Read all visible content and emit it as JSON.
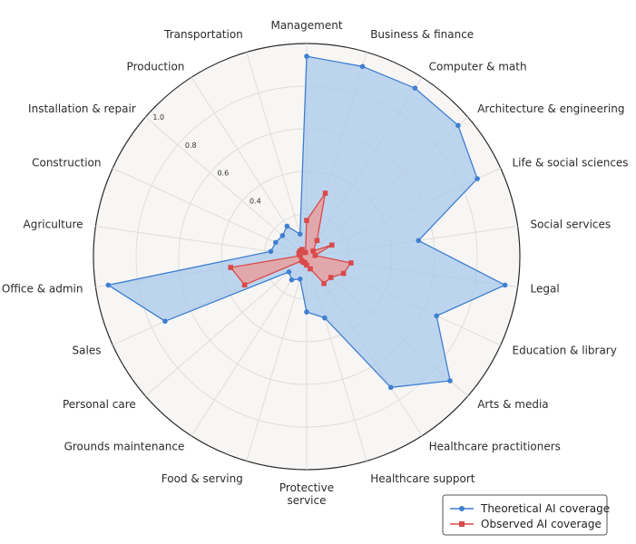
{
  "chart_data": {
    "type": "radar",
    "title": "",
    "categories": [
      "Management",
      "Business & finance",
      "Computer & math",
      "Architecture & engineering",
      "Life & social sciences",
      "Social services",
      "Legal",
      "Education & library",
      "Arts & media",
      "Healthcare practitioners",
      "Healthcare support",
      "Protective service",
      "Food & serving",
      "Grounds maintenance",
      "Personal care",
      "Sales",
      "Office & admin",
      "Agriculture",
      "Construction",
      "Installation & repair",
      "Production",
      "Transportation"
    ],
    "rlim": [
      0,
      1.0
    ],
    "tick_values": [
      0.4,
      0.6,
      0.8,
      1.0
    ],
    "tick_labels": [
      "0.4",
      "0.6",
      "0.8",
      "1.0"
    ],
    "series": [
      {
        "name": "Theoretical AI coverage",
        "color": "#3f7fd0",
        "fill": "#a9c8ec",
        "marker": "circle",
        "values": [
          0.94,
          0.93,
          0.94,
          0.94,
          0.88,
          0.53,
          0.94,
          0.67,
          0.89,
          0.73,
          0.3,
          0.26,
          0.11,
          0.13,
          0.11,
          0.73,
          0.94,
          0.17,
          0.16,
          0.15,
          0.17,
          0.11
        ]
      },
      {
        "name": "Observed AI coverage",
        "color": "#d94a4a",
        "fill": "#e8a0a0",
        "marker": "square",
        "values": [
          0.17,
          0.31,
          0.09,
          0.04,
          0.13,
          0.04,
          0.21,
          0.19,
          0.15,
          0.15,
          0.06,
          0.04,
          0.03,
          0.03,
          0.03,
          0.32,
          0.36,
          0.03,
          0.04,
          0.04,
          0.04,
          0.02
        ]
      }
    ],
    "legend_position": "bottom-right",
    "grid": true
  }
}
